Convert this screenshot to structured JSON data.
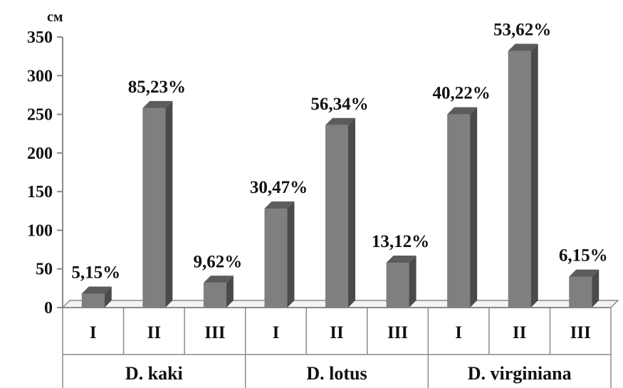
{
  "chart_data": {
    "type": "bar",
    "ylabel": "см",
    "ylim": [
      0,
      350
    ],
    "yticks": [
      0,
      50,
      100,
      150,
      200,
      250,
      300,
      350
    ],
    "grid": false,
    "groups": [
      {
        "name": "D. kaki",
        "categories": [
          "I",
          "II",
          "III"
        ],
        "values": [
          18,
          258,
          32
        ],
        "labels": [
          "5,15%",
          "85,23%",
          "9,62%"
        ]
      },
      {
        "name": "D. lotus",
        "categories": [
          "I",
          "II",
          "III"
        ],
        "values": [
          128,
          236,
          58
        ],
        "labels": [
          "30,47%",
          "56,34%",
          "13,12%"
        ]
      },
      {
        "name": "D. virginiana",
        "categories": [
          "I",
          "II",
          "III"
        ],
        "values": [
          250,
          332,
          40
        ],
        "labels": [
          "40,22%",
          "53,62%",
          "6,15%"
        ]
      }
    ],
    "colors": {
      "bar_front": "#7f7f7f",
      "bar_side": "#4a4a4a",
      "bar_top": "#5c5c5c",
      "axis": "#8a8a8a"
    }
  }
}
